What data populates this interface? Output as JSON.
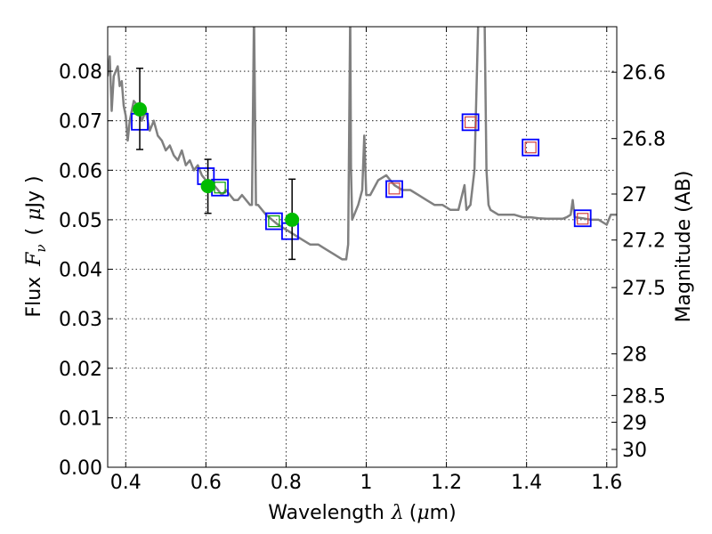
{
  "chart_data": {
    "type": "scatter",
    "xlabel_parts": {
      "word": "Wavelength",
      "symbol": "λ",
      "unit_open": "(",
      "mu": "μ",
      "unit": "m",
      "unit_close": ")"
    },
    "ylabel_parts": {
      "word": "Flux",
      "symbol": "F",
      "subscript": "ν",
      "unit_open": "(",
      "mu": "μ",
      "unit": "Jy",
      "unit_close": ")"
    },
    "y2label": "Magnitude (AB)",
    "xlim": [
      0.355,
      1.625
    ],
    "ylim": [
      0.0,
      0.089
    ],
    "grid": true,
    "x_ticks": [
      0.4,
      0.6,
      0.8,
      1.0,
      1.2,
      1.4,
      1.6
    ],
    "x_tick_labels": [
      "0.4",
      "0.6",
      "0.8",
      "1",
      "1.2",
      "1.4",
      "1.6"
    ],
    "y_ticks": [
      0.0,
      0.01,
      0.02,
      0.03,
      0.04,
      0.05,
      0.06,
      0.07,
      0.08
    ],
    "y_tick_labels": [
      "0.00",
      "0.01",
      "0.02",
      "0.03",
      "0.04",
      "0.05",
      "0.06",
      "0.07",
      "0.08"
    ],
    "y2_ticks": [
      {
        "label": "26.6",
        "flux": 0.0798
      },
      {
        "label": "26.8",
        "flux": 0.0664
      },
      {
        "label": "27",
        "flux": 0.0552
      },
      {
        "label": "27.2",
        "flux": 0.0459
      },
      {
        "label": "27.5",
        "flux": 0.0363
      },
      {
        "label": "28",
        "flux": 0.0229
      },
      {
        "label": "28.5",
        "flux": 0.0145
      },
      {
        "label": "29",
        "flux": 0.0091
      },
      {
        "label": "30",
        "flux": 0.0036
      }
    ],
    "colors": {
      "sed": "#808080",
      "observed": "#00bb00",
      "model_box": "#0000ff",
      "nir_inner": "#d04040",
      "opt_inner": "#00a000"
    },
    "series": [
      {
        "kind": "line",
        "points": [
          [
            0.355,
            0.079
          ],
          [
            0.36,
            0.083
          ],
          [
            0.365,
            0.072
          ],
          [
            0.37,
            0.079
          ],
          [
            0.38,
            0.081
          ],
          [
            0.385,
            0.077
          ],
          [
            0.39,
            0.078
          ],
          [
            0.395,
            0.073
          ],
          [
            0.4,
            0.071
          ],
          [
            0.405,
            0.066
          ],
          [
            0.41,
            0.07
          ],
          [
            0.42,
            0.074
          ],
          [
            0.43,
            0.073
          ],
          [
            0.44,
            0.07
          ],
          [
            0.45,
            0.072
          ],
          [
            0.46,
            0.068
          ],
          [
            0.47,
            0.07
          ],
          [
            0.48,
            0.067
          ],
          [
            0.49,
            0.066
          ],
          [
            0.5,
            0.064
          ],
          [
            0.51,
            0.065
          ],
          [
            0.52,
            0.063
          ],
          [
            0.53,
            0.062
          ],
          [
            0.54,
            0.064
          ],
          [
            0.55,
            0.061
          ],
          [
            0.56,
            0.062
          ],
          [
            0.57,
            0.06
          ],
          [
            0.58,
            0.061
          ],
          [
            0.59,
            0.059
          ],
          [
            0.6,
            0.058
          ],
          [
            0.61,
            0.057
          ],
          [
            0.62,
            0.057
          ],
          [
            0.63,
            0.056
          ],
          [
            0.64,
            0.055
          ],
          [
            0.65,
            0.056
          ],
          [
            0.66,
            0.055
          ],
          [
            0.67,
            0.054
          ],
          [
            0.68,
            0.054
          ],
          [
            0.69,
            0.055
          ],
          [
            0.7,
            0.054
          ],
          [
            0.71,
            0.053
          ],
          [
            0.715,
            0.053
          ],
          [
            0.72,
            0.092
          ],
          [
            0.725,
            0.053
          ],
          [
            0.73,
            0.053
          ],
          [
            0.75,
            0.051
          ],
          [
            0.78,
            0.049
          ],
          [
            0.8,
            0.048
          ],
          [
            0.82,
            0.047
          ],
          [
            0.84,
            0.046
          ],
          [
            0.86,
            0.045
          ],
          [
            0.88,
            0.045
          ],
          [
            0.9,
            0.044
          ],
          [
            0.92,
            0.043
          ],
          [
            0.94,
            0.042
          ],
          [
            0.95,
            0.042
          ],
          [
            0.955,
            0.045
          ],
          [
            0.96,
            0.092
          ],
          [
            0.962,
            0.06
          ],
          [
            0.965,
            0.05
          ],
          [
            0.98,
            0.053
          ],
          [
            0.99,
            0.056
          ],
          [
            0.995,
            0.067
          ],
          [
            1.0,
            0.055
          ],
          [
            1.01,
            0.055
          ],
          [
            1.03,
            0.058
          ],
          [
            1.05,
            0.059
          ],
          [
            1.07,
            0.057
          ],
          [
            1.09,
            0.056
          ],
          [
            1.11,
            0.056
          ],
          [
            1.13,
            0.055
          ],
          [
            1.15,
            0.054
          ],
          [
            1.17,
            0.053
          ],
          [
            1.19,
            0.053
          ],
          [
            1.21,
            0.052
          ],
          [
            1.23,
            0.052
          ],
          [
            1.245,
            0.057
          ],
          [
            1.25,
            0.052
          ],
          [
            1.26,
            0.053
          ],
          [
            1.27,
            0.06
          ],
          [
            1.28,
            0.092
          ],
          [
            1.295,
            0.092
          ],
          [
            1.3,
            0.06
          ],
          [
            1.305,
            0.053
          ],
          [
            1.31,
            0.052
          ],
          [
            1.33,
            0.051
          ],
          [
            1.35,
            0.051
          ],
          [
            1.37,
            0.051
          ],
          [
            1.39,
            0.0505
          ],
          [
            1.41,
            0.0505
          ],
          [
            1.43,
            0.0503
          ],
          [
            1.45,
            0.0502
          ],
          [
            1.47,
            0.0502
          ],
          [
            1.49,
            0.0502
          ],
          [
            1.5,
            0.0505
          ],
          [
            1.51,
            0.051
          ],
          [
            1.515,
            0.054
          ],
          [
            1.52,
            0.0505
          ],
          [
            1.54,
            0.0503
          ],
          [
            1.56,
            0.05
          ],
          [
            1.58,
            0.05
          ],
          [
            1.6,
            0.049
          ],
          [
            1.61,
            0.051
          ],
          [
            1.625,
            0.051
          ]
        ]
      },
      {
        "kind": "boxes",
        "points": [
          [
            0.435,
            0.0698
          ],
          [
            0.6,
            0.0588
          ],
          [
            0.635,
            0.0565
          ],
          [
            0.77,
            0.0497
          ],
          [
            0.81,
            0.0477
          ],
          [
            1.07,
            0.0562
          ],
          [
            1.26,
            0.0697
          ],
          [
            1.41,
            0.0646
          ],
          [
            1.54,
            0.0503
          ]
        ]
      },
      {
        "kind": "inner_boxes_red",
        "points": [
          [
            1.07,
            0.0563
          ],
          [
            1.26,
            0.0697
          ],
          [
            1.41,
            0.0646
          ],
          [
            1.54,
            0.0502
          ]
        ]
      },
      {
        "kind": "inner_boxes_green",
        "points": [
          [
            0.635,
            0.0565
          ],
          [
            0.77,
            0.0497
          ]
        ]
      },
      {
        "kind": "points_with_error",
        "points": [
          {
            "x": 0.435,
            "y": 0.0723,
            "yerr_low": 0.0642,
            "yerr_high": 0.0806
          },
          {
            "x": 0.605,
            "y": 0.0568,
            "yerr_low": 0.0513,
            "yerr_high": 0.0622
          },
          {
            "x": 0.815,
            "y": 0.05,
            "yerr_low": 0.042,
            "yerr_high": 0.0582
          }
        ]
      }
    ]
  }
}
